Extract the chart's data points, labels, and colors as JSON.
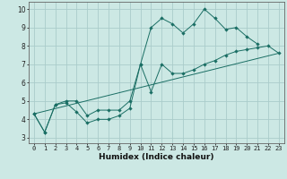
{
  "xlabel": "Humidex (Indice chaleur)",
  "bg_color": "#cce8e4",
  "grid_color": "#aaccca",
  "line_color": "#1a6e64",
  "xlim": [
    -0.5,
    23.5
  ],
  "ylim": [
    2.7,
    10.4
  ],
  "xticks": [
    0,
    1,
    2,
    3,
    4,
    5,
    6,
    7,
    8,
    9,
    10,
    11,
    12,
    13,
    14,
    15,
    16,
    17,
    18,
    19,
    20,
    21,
    22,
    23
  ],
  "yticks": [
    3,
    4,
    5,
    6,
    7,
    8,
    9,
    10
  ],
  "line1_x": [
    0,
    1,
    2,
    3,
    4,
    5,
    6,
    7,
    8,
    9,
    10,
    11,
    12,
    13,
    14,
    15,
    16,
    17,
    18,
    19,
    20,
    21
  ],
  "line1_y": [
    4.3,
    3.3,
    4.8,
    4.9,
    4.4,
    3.8,
    4.0,
    4.0,
    4.2,
    4.6,
    7.0,
    9.0,
    9.5,
    9.2,
    8.7,
    9.2,
    10.0,
    9.5,
    8.9,
    9.0,
    8.5,
    8.1
  ],
  "line2_x": [
    0,
    1,
    2,
    3,
    4,
    5,
    6,
    7,
    8,
    9,
    10,
    11,
    12,
    13,
    14,
    15,
    16,
    17,
    18,
    19,
    20,
    21,
    22,
    23
  ],
  "line2_y": [
    4.3,
    3.3,
    4.8,
    5.0,
    5.0,
    4.2,
    4.5,
    4.5,
    4.5,
    5.0,
    7.0,
    5.5,
    7.0,
    6.5,
    6.5,
    6.7,
    7.0,
    7.2,
    7.5,
    7.7,
    7.8,
    7.9,
    8.0,
    7.6
  ],
  "line3_x": [
    0,
    23
  ],
  "line3_y": [
    4.3,
    7.6
  ],
  "tick_fontsize": 5.0,
  "xlabel_fontsize": 6.5,
  "markersize": 2.2
}
